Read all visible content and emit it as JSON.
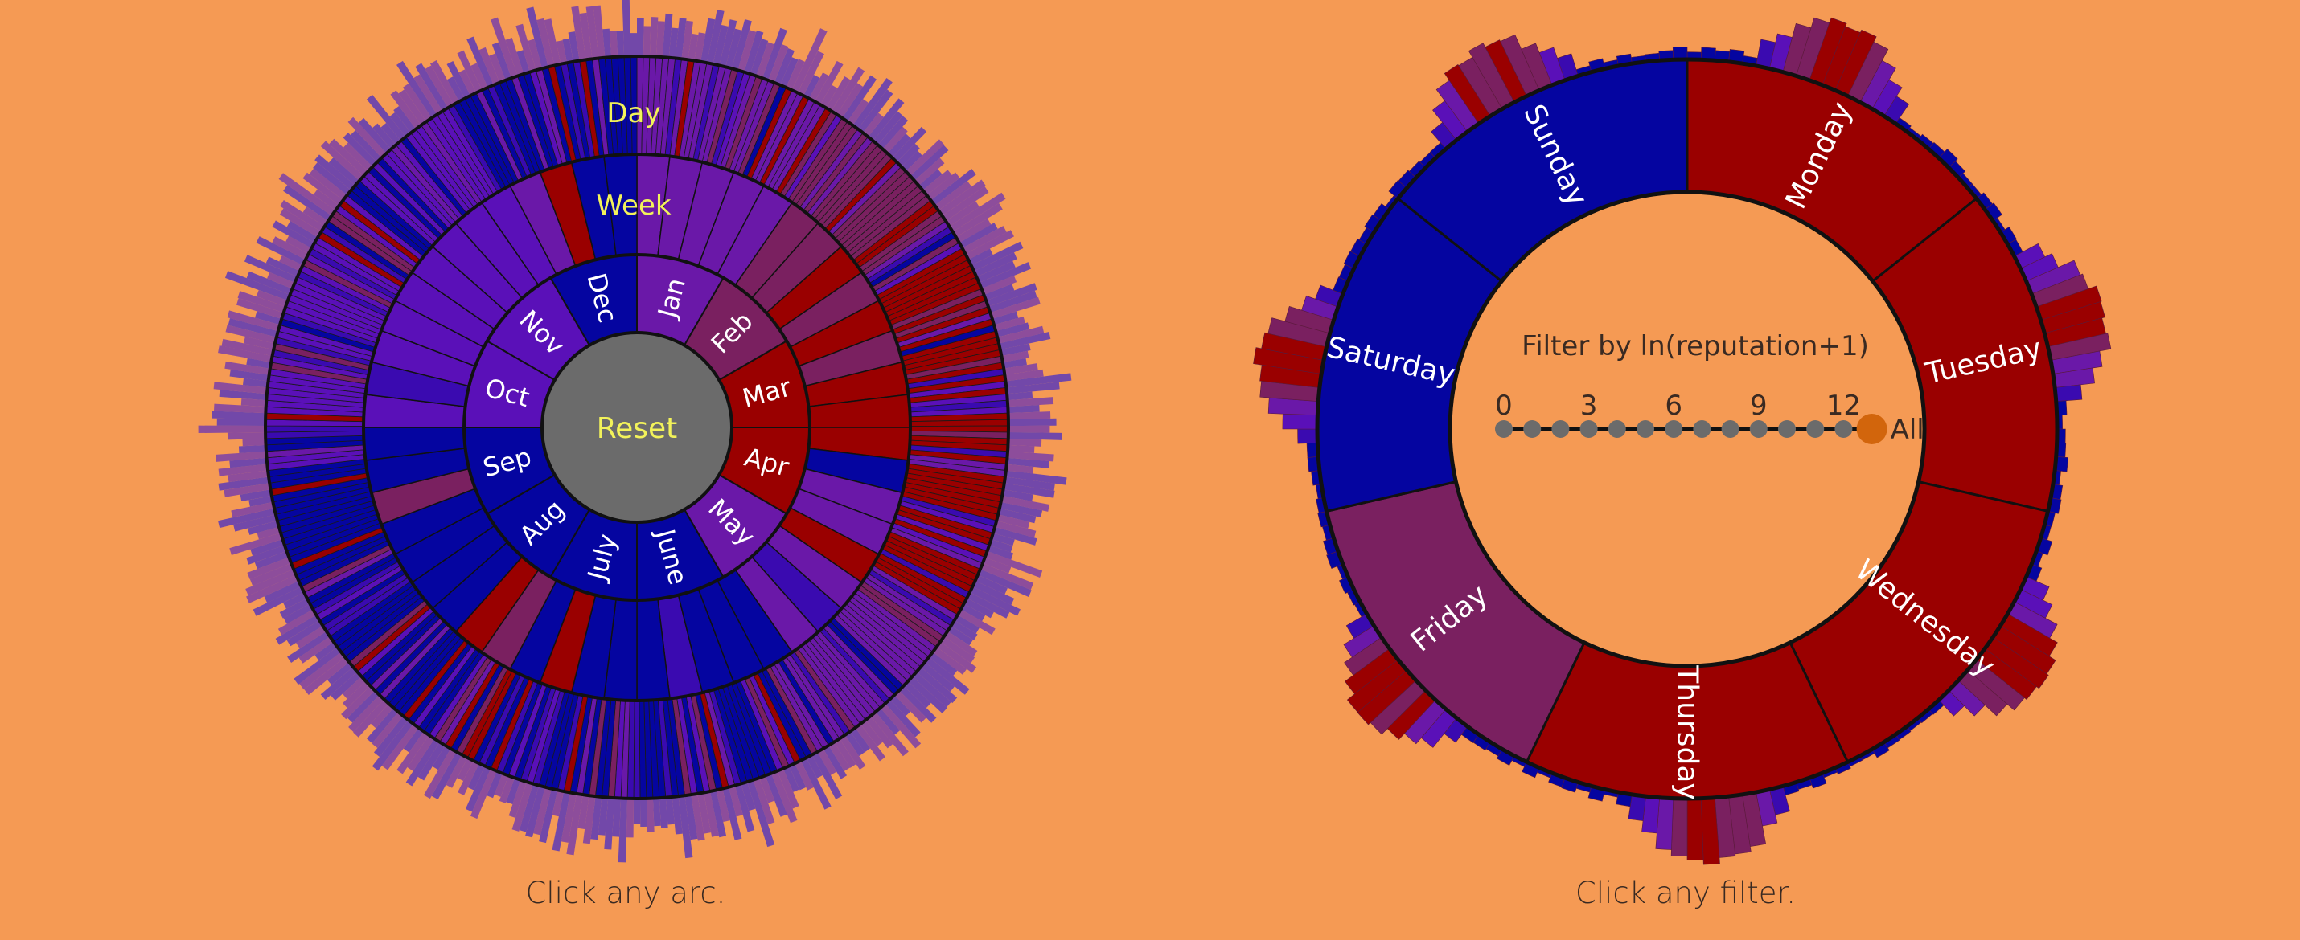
{
  "colors": {
    "background": "#F59A54",
    "blue": "#0505A0",
    "deep_purple": "#3A0AB0",
    "purple": "#5A10B8",
    "violet": "#6A18A8",
    "magenta": "#7A2060",
    "red": "#9A0000",
    "center": "#6B6B6B",
    "label_yellow": "#F2F25A",
    "slider_dot": "#6B6B6B",
    "slider_active": "#D2650C"
  },
  "left_widget": {
    "reset_label": "Reset",
    "week_label": "Week",
    "day_label": "Day",
    "months": [
      "Jan",
      "Feb",
      "Mar",
      "Apr",
      "May",
      "June",
      "July",
      "Aug",
      "Sep",
      "Oct",
      "Nov",
      "Dec"
    ],
    "month_colors": [
      "violet",
      "magenta",
      "red",
      "red",
      "violet",
      "blue",
      "blue",
      "blue",
      "blue",
      "purple",
      "purple",
      "blue"
    ],
    "caption": "Click any arc."
  },
  "right_widget": {
    "days": [
      "Monday",
      "Tuesday",
      "Wednesday",
      "Thursday",
      "Friday",
      "Saturday",
      "Sunday"
    ],
    "day_colors": [
      "red",
      "red",
      "red",
      "red",
      "magenta",
      "blue",
      "blue"
    ],
    "filter_title": "Filter by ln(reputation+1)",
    "tick_labels": [
      "0",
      "3",
      "6",
      "9",
      "12"
    ],
    "slider_count": 14,
    "all_label": "All",
    "caption": "Click any filter."
  }
}
